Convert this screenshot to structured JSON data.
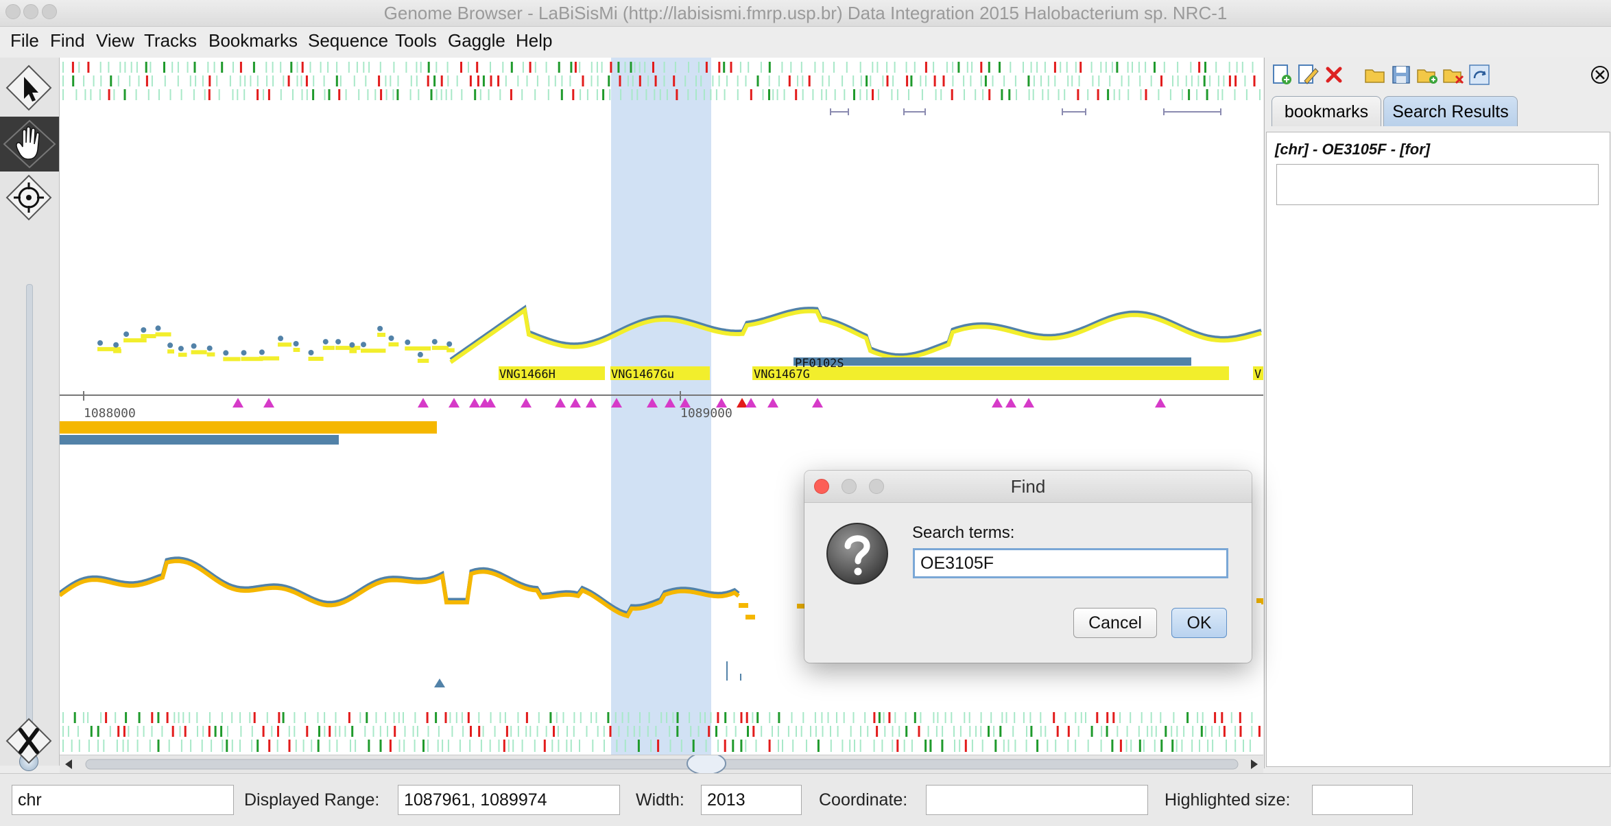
{
  "window": {
    "title": "Genome Browser - LaBiSisMi (http://labisismi.fmrp.usp.br) Data Integration 2015 Halobacterium sp. NRC-1"
  },
  "menu": [
    "File",
    "Find",
    "View",
    "Tracks",
    "Bookmarks",
    "Sequence",
    "Tools",
    "Gaggle",
    "Help"
  ],
  "left_toolbar": [
    "select-arrow-icon",
    "hand-pan-icon",
    "crosshair-icon",
    "zoom-fit-icon"
  ],
  "tracks": {
    "gene_labels": [
      "VNG1466H",
      "VNG1467Gu",
      "VNG1467G",
      "PF0102S",
      "V"
    ],
    "ruler_ticks": [
      "1088000",
      "1089000"
    ],
    "colors": {
      "forward": "#f2ee2c",
      "reverse": "#5282a8",
      "orange": "#f5b700",
      "motif": "#d63ac8",
      "highlight": "#c9dcf2",
      "red_tick": "#e21b1b",
      "green_tick": "#1f9a2c",
      "light_tick": "#a8e8c8"
    }
  },
  "right_panel": {
    "toolbar_icons": [
      "new-bookmark-icon",
      "edit-bookmark-icon",
      "delete-bookmark-icon",
      "open-folder-icon",
      "save-icon",
      "add-folder-icon",
      "remove-folder-icon",
      "sync-icon",
      "close-panel-icon"
    ],
    "tabs": {
      "bookmarks": "bookmarks",
      "search": "Search Results"
    },
    "results_title": "[chr] - OE3105F - [for]"
  },
  "status": {
    "chromosome": "chr",
    "displayed_range_label": "Displayed Range:",
    "displayed_range": "1087961, 1089974",
    "width_label": "Width:",
    "width": "2013",
    "coordinate_label": "Coordinate:",
    "coordinate": "",
    "highlighted_label": "Highlighted size:",
    "highlighted": ""
  },
  "dialog": {
    "title": "Find",
    "label": "Search terms:",
    "value": "OE3105F",
    "cancel": "Cancel",
    "ok": "OK"
  }
}
